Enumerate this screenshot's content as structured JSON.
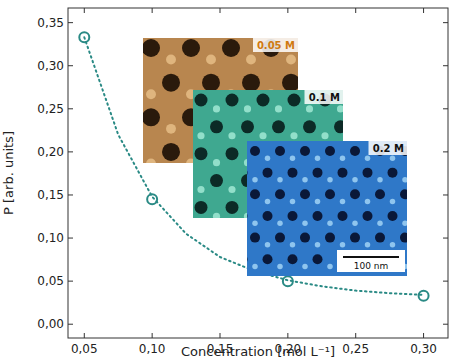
{
  "chart_data": {
    "type": "scatter",
    "x_label": "Concentration [mol L⁻¹]",
    "y_label": "P [arb. units]",
    "xlim": [
      0.038,
      0.318
    ],
    "ylim": [
      -0.016,
      0.367
    ],
    "xticks": [
      {
        "value": 0.05,
        "label": "0,05"
      },
      {
        "value": 0.1,
        "label": "0,10"
      },
      {
        "value": 0.15,
        "label": "0,15"
      },
      {
        "value": 0.2,
        "label": "0,20"
      },
      {
        "value": 0.25,
        "label": "0,25"
      },
      {
        "value": 0.3,
        "label": "0,30"
      }
    ],
    "yticks": [
      {
        "value": 0,
        "label": "0,00"
      },
      {
        "value": 0.05,
        "label": "0,05"
      },
      {
        "value": 0.1,
        "label": "0,10"
      },
      {
        "value": 0.15,
        "label": "0,15"
      },
      {
        "value": 0.2,
        "label": "0,20"
      },
      {
        "value": 0.25,
        "label": "0,25"
      },
      {
        "value": 0.3,
        "label": "0,30"
      },
      {
        "value": 0.35,
        "label": "0,35"
      }
    ],
    "grid": false,
    "series": [
      {
        "x": [
          0.05,
          0.1,
          0.2,
          0.3
        ],
        "values": [
          0.333,
          0.145,
          0.05,
          0.033
        ],
        "color": "#2a8a85",
        "marker": "circle",
        "line_style": "none"
      },
      {
        "x": [
          0.05,
          0.075,
          0.1,
          0.125,
          0.15,
          0.175,
          0.2,
          0.225,
          0.25,
          0.275,
          0.3
        ],
        "values": [
          0.333,
          0.22,
          0.148,
          0.105,
          0.078,
          0.062,
          0.051,
          0.044,
          0.039,
          0.036,
          0.034
        ],
        "color": "#2a8a85",
        "marker": "none",
        "line_style": "dotted"
      }
    ],
    "annotations": [
      "0.05 M",
      "0.1 M",
      "0.2 M",
      "100 nm"
    ]
  }
}
